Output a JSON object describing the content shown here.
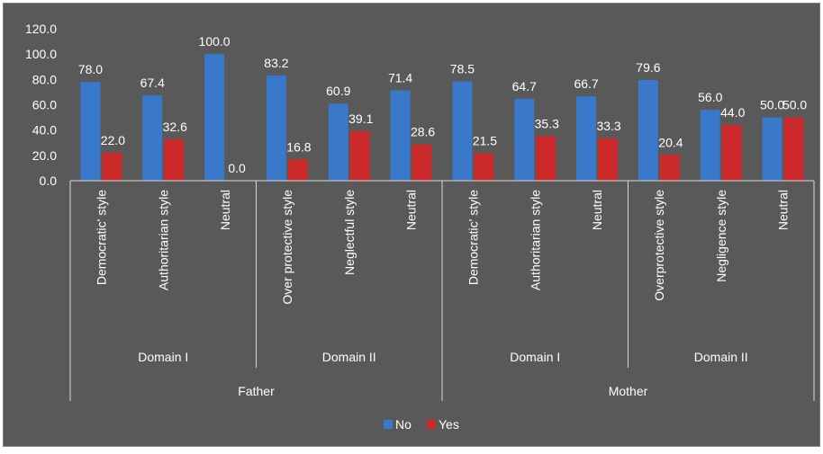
{
  "colors": {
    "background": "#595959",
    "no_bar": "#3a78c9",
    "yes_bar": "#cc2a2a",
    "text": "#ffffff",
    "axis": "#d9d9d9",
    "frame": "#ffffff"
  },
  "chart_data": {
    "type": "bar",
    "title": "",
    "xlabel": "",
    "ylabel": "",
    "ylim": [
      0,
      120
    ],
    "yticks": [
      "0.0",
      "20.0",
      "40.0",
      "60.0",
      "80.0",
      "100.0",
      "120.0"
    ],
    "grid": false,
    "legend_position": "bottom",
    "categories": [
      "Democratic' style",
      "Authoritarian style",
      "Neutral",
      "Over protective style",
      "Neglectful style",
      "Neutral",
      "Democratic' style",
      "Authoritarian style",
      "Neutral",
      "Overprotective style",
      "Negligence style",
      "Neutral"
    ],
    "domain_groups": [
      {
        "label": "Domain I",
        "span": [
          0,
          2
        ]
      },
      {
        "label": "Domain II",
        "span": [
          3,
          5
        ]
      },
      {
        "label": "Domain I",
        "span": [
          6,
          8
        ]
      },
      {
        "label": "Domain II",
        "span": [
          9,
          11
        ]
      }
    ],
    "parent_groups": [
      {
        "label": "Father",
        "span": [
          0,
          5
        ]
      },
      {
        "label": "Mother",
        "span": [
          6,
          11
        ]
      }
    ],
    "series": [
      {
        "name": "No",
        "color": "#3a78c9",
        "values": [
          78.0,
          67.4,
          100.0,
          83.2,
          60.9,
          71.4,
          78.5,
          64.7,
          66.7,
          79.6,
          56.0,
          50.0
        ],
        "labels": [
          "78.0",
          "67.4",
          "100.0",
          "83.2",
          "60.9",
          "71.4",
          "78.5",
          "64.7",
          "66.7",
          "79.6",
          "56.0",
          "50.0"
        ]
      },
      {
        "name": "Yes",
        "color": "#cc2a2a",
        "values": [
          22.0,
          32.6,
          0.0,
          16.8,
          39.1,
          28.6,
          21.5,
          35.3,
          33.3,
          20.4,
          44.0,
          50.0
        ],
        "labels": [
          "22.0",
          "32.6",
          "0.0",
          "16.8",
          "39.1",
          "28.6",
          "21.5",
          "35.3",
          "33.3",
          "20.4",
          "44.0",
          "50.0"
        ]
      }
    ]
  }
}
